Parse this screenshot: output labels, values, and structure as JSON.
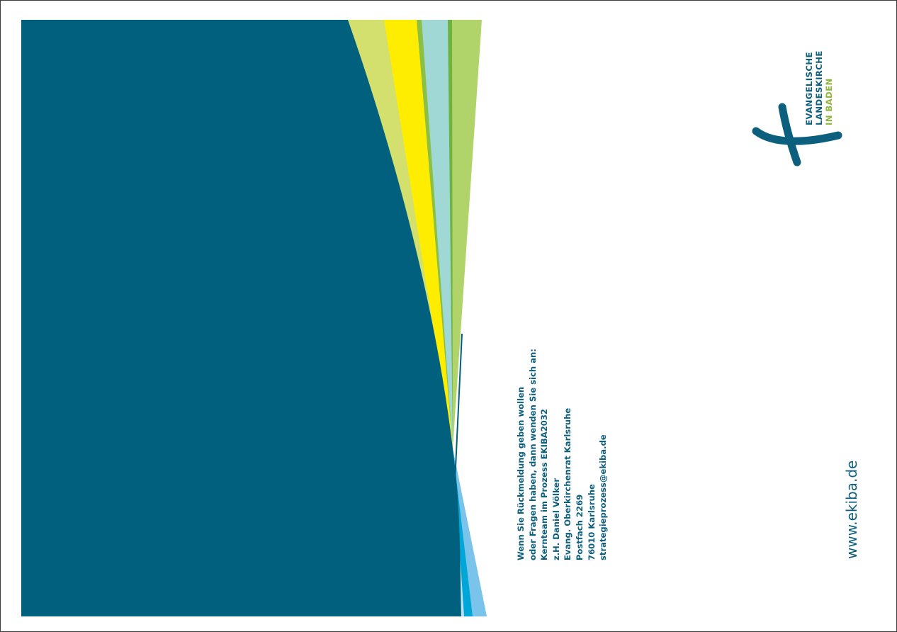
{
  "logo": {
    "line1": "EVANGELISCHE",
    "line2": "LANDESKIRCHE",
    "line3": "IN BADEN",
    "icon": "cross-icon",
    "color_primary": "#0d5f7e",
    "color_accent": "#8cb63c"
  },
  "contact": {
    "lines": [
      "Wenn Sie Rückmeldung geben wollen",
      "oder Fragen haben, dann wenden Sie sich an:",
      "Kernteam im Prozess EKIBA2032",
      "z.H. Daniel Völker",
      "Evang. Oberkirchenrat Karlsruhe",
      "Postfach 2269",
      "76010 Karlsruhe",
      "strategieprozess@ekiba.de"
    ]
  },
  "website": "www.ekiba.de",
  "colors": {
    "panel": "#01607d",
    "olive": "#d4e06e",
    "yellow": "#ffed00",
    "green": "#8cc045",
    "aqua": "#9fd8d5",
    "lime": "#b1d46a",
    "sky": "#7ac3ea",
    "cyan": "#00a6d8",
    "violet": "#8c8dc4",
    "navy": "#2a4d8a"
  }
}
